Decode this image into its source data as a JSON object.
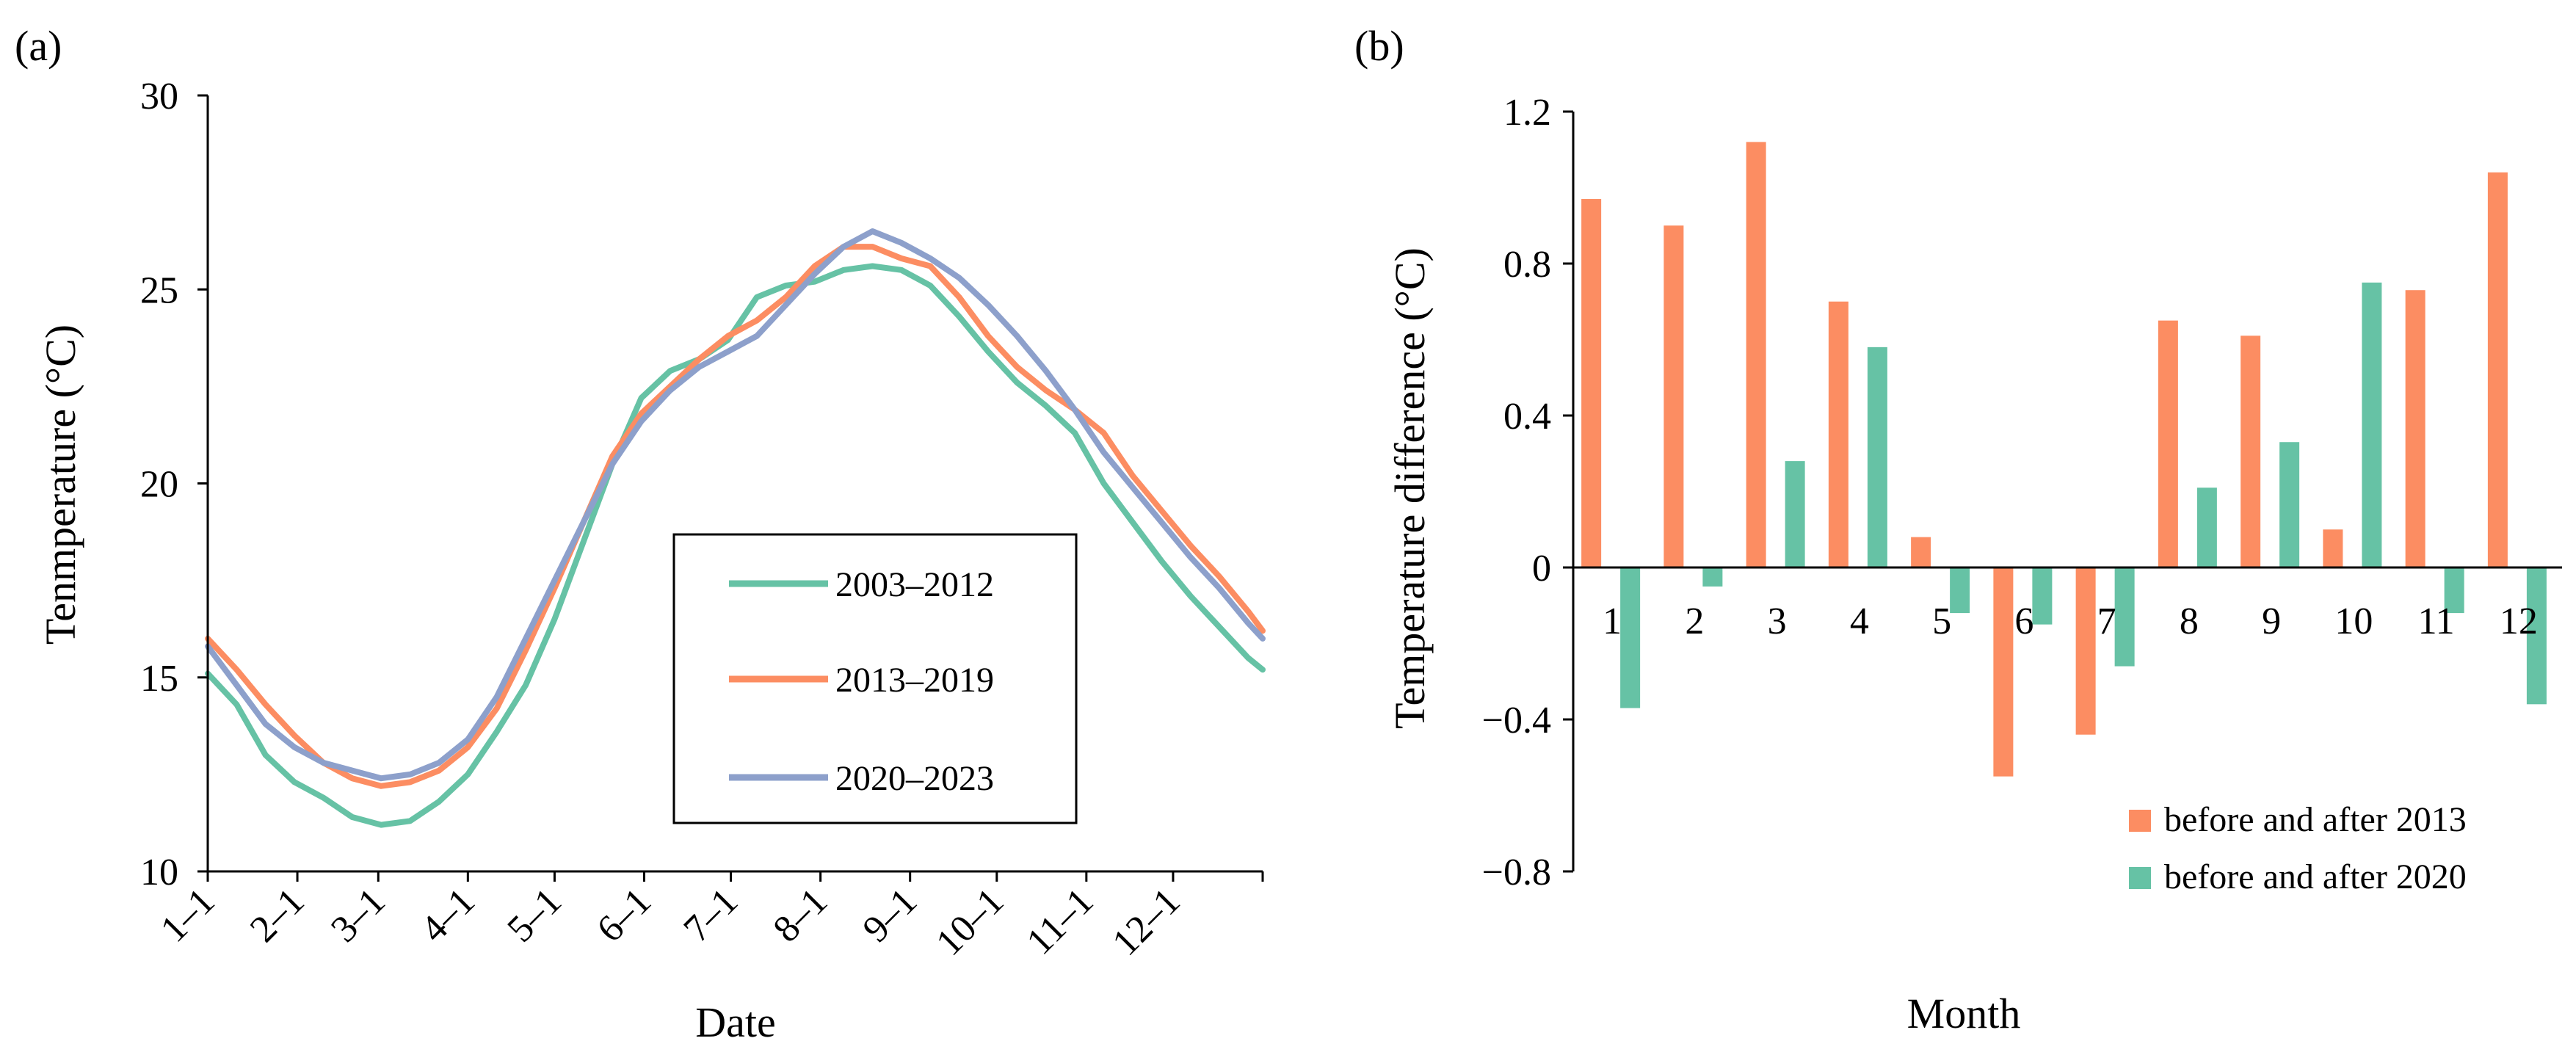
{
  "colors": {
    "green": "#66c2a5",
    "orange": "#fc8d62",
    "purple": "#8da0cb"
  },
  "chart_data": [
    {
      "panel_label": "(a)",
      "type": "line",
      "xlabel": "Date",
      "ylabel": "Tenmperature (°C)",
      "ylim": [
        10,
        30
      ],
      "yticks": [
        "10",
        "15",
        "20",
        "25",
        "30"
      ],
      "x_ticks": [
        "1–1",
        "2–1",
        "3–1",
        "4–1",
        "5–1",
        "6–1",
        "7–1",
        "8–1",
        "9–1",
        "10–1",
        "11–1",
        "12–1"
      ],
      "x_range_days": [
        0,
        365
      ],
      "x_tick_days": [
        0,
        31,
        59,
        90,
        120,
        151,
        181,
        212,
        243,
        273,
        304,
        334
      ],
      "series": [
        {
          "name": "2003–2012",
          "color": "#66c2a5",
          "x": [
            0,
            10,
            20,
            30,
            40,
            50,
            60,
            70,
            80,
            90,
            100,
            110,
            120,
            130,
            140,
            150,
            160,
            170,
            180,
            190,
            200,
            210,
            220,
            230,
            240,
            250,
            260,
            270,
            280,
            290,
            300,
            310,
            320,
            330,
            340,
            350,
            360,
            365
          ],
          "values": [
            15.1,
            14.3,
            13.0,
            12.3,
            11.9,
            11.4,
            11.2,
            11.3,
            11.8,
            12.5,
            13.6,
            14.8,
            16.5,
            18.5,
            20.5,
            22.2,
            22.9,
            23.2,
            23.7,
            24.8,
            25.1,
            25.2,
            25.5,
            25.6,
            25.5,
            25.1,
            24.3,
            23.4,
            22.6,
            22.0,
            21.3,
            20.0,
            19.0,
            18.0,
            17.1,
            16.3,
            15.5,
            15.2
          ]
        },
        {
          "name": "2013–2019",
          "color": "#fc8d62",
          "x": [
            0,
            10,
            20,
            30,
            40,
            50,
            60,
            70,
            80,
            90,
            100,
            110,
            120,
            130,
            140,
            150,
            160,
            170,
            180,
            190,
            200,
            210,
            220,
            230,
            240,
            250,
            260,
            270,
            280,
            290,
            300,
            310,
            320,
            330,
            340,
            350,
            360,
            365
          ],
          "values": [
            16.0,
            15.2,
            14.3,
            13.5,
            12.8,
            12.4,
            12.2,
            12.3,
            12.6,
            13.2,
            14.2,
            15.7,
            17.3,
            19.0,
            20.7,
            21.8,
            22.5,
            23.2,
            23.8,
            24.2,
            24.8,
            25.6,
            26.1,
            26.1,
            25.8,
            25.6,
            24.8,
            23.8,
            23.0,
            22.4,
            21.9,
            21.3,
            20.2,
            19.3,
            18.4,
            17.6,
            16.7,
            16.2
          ]
        },
        {
          "name": "2020–2023",
          "color": "#8da0cb",
          "x": [
            0,
            10,
            20,
            30,
            40,
            50,
            60,
            70,
            80,
            90,
            100,
            110,
            120,
            130,
            140,
            150,
            160,
            170,
            180,
            190,
            200,
            210,
            220,
            230,
            240,
            250,
            260,
            270,
            280,
            290,
            300,
            310,
            320,
            330,
            340,
            350,
            360,
            365
          ],
          "values": [
            15.8,
            14.8,
            13.8,
            13.2,
            12.8,
            12.6,
            12.4,
            12.5,
            12.8,
            13.4,
            14.5,
            16.0,
            17.5,
            19.0,
            20.5,
            21.6,
            22.4,
            23.0,
            23.4,
            23.8,
            24.6,
            25.4,
            26.1,
            26.5,
            26.2,
            25.8,
            25.3,
            24.6,
            23.8,
            22.9,
            21.9,
            20.8,
            19.9,
            19.0,
            18.1,
            17.3,
            16.4,
            16.0
          ]
        }
      ]
    },
    {
      "panel_label": "(b)",
      "type": "bar",
      "xlabel": "Month",
      "ylabel": "Temperature difference (°C)",
      "ylim": [
        -0.8,
        1.2
      ],
      "yticks": [
        "−0.8",
        "−0.4",
        "0",
        "0.4",
        "0.8",
        "1.2"
      ],
      "categories": [
        "1",
        "2",
        "3",
        "4",
        "5",
        "6",
        "7",
        "8",
        "9",
        "10",
        "11",
        "12"
      ],
      "series": [
        {
          "name": "before and after 2013",
          "color": "#fc8d62",
          "values": [
            0.97,
            0.9,
            1.12,
            0.7,
            0.08,
            -0.55,
            -0.44,
            0.65,
            0.61,
            0.1,
            0.73,
            1.04
          ]
        },
        {
          "name": "before and after 2020",
          "color": "#66c2a5",
          "values": [
            -0.37,
            -0.05,
            0.28,
            0.58,
            -0.12,
            -0.15,
            -0.26,
            0.21,
            0.33,
            0.75,
            -0.12,
            -0.36
          ]
        }
      ]
    }
  ]
}
